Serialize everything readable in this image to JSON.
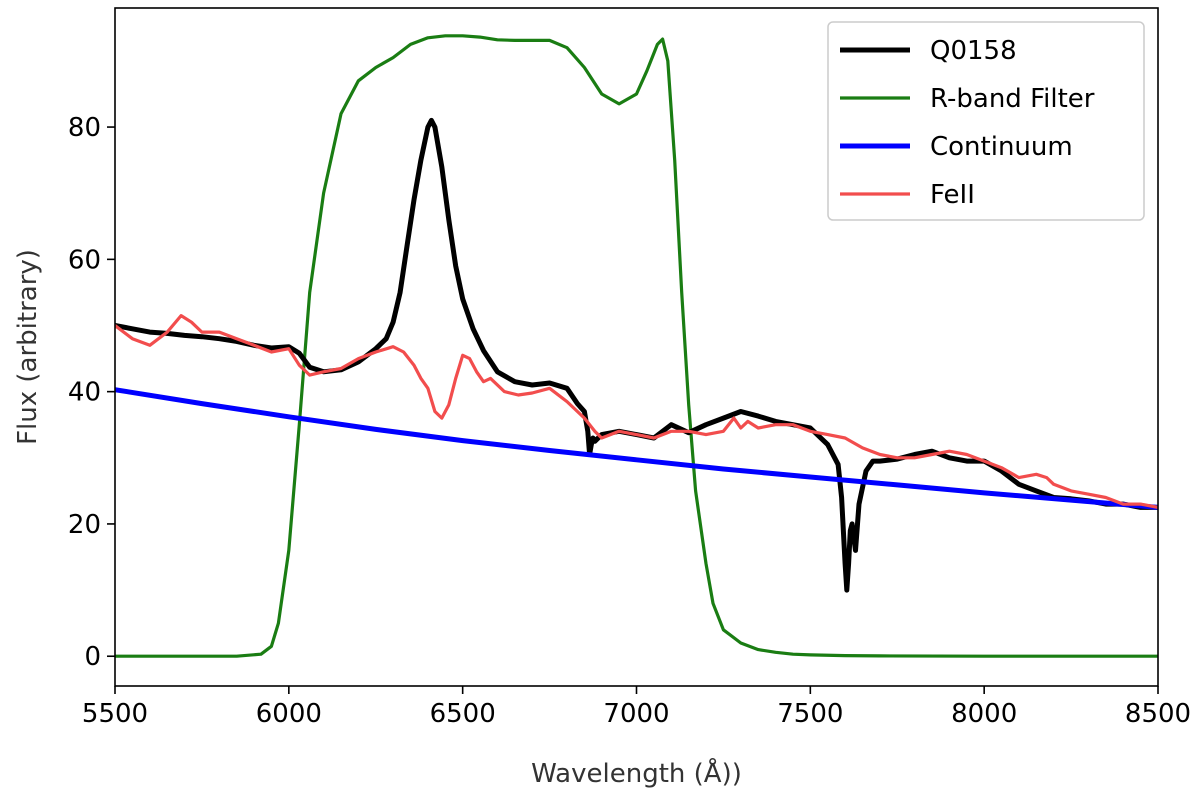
{
  "chart_data": {
    "type": "line",
    "title": "",
    "xlabel": "Wavelength (Å))",
    "ylabel": "Flux (arbitrary)",
    "xlim": [
      5500,
      8500
    ],
    "ylim": [
      -4.5,
      98
    ],
    "xticks": [
      5500,
      6000,
      6500,
      7000,
      7500,
      8000,
      8500
    ],
    "yticks": [
      0,
      20,
      40,
      60,
      80
    ],
    "grid": false,
    "legend_position": "top-right",
    "series": [
      {
        "name": "Q0158",
        "color": "#000000",
        "x": [
          5500,
          5550,
          5600,
          5650,
          5700,
          5750,
          5800,
          5850,
          5900,
          5950,
          6000,
          6030,
          6060,
          6100,
          6150,
          6200,
          6250,
          6280,
          6300,
          6320,
          6340,
          6360,
          6380,
          6400,
          6410,
          6420,
          6440,
          6460,
          6480,
          6500,
          6530,
          6560,
          6600,
          6650,
          6700,
          6750,
          6800,
          6830,
          6850,
          6860,
          6865,
          6870,
          6875,
          6880,
          6900,
          6950,
          7000,
          7050,
          7100,
          7150,
          7200,
          7250,
          7300,
          7350,
          7400,
          7450,
          7500,
          7550,
          7580,
          7590,
          7600,
          7605,
          7610,
          7615,
          7620,
          7630,
          7640,
          7660,
          7680,
          7700,
          7750,
          7800,
          7850,
          7900,
          7950,
          8000,
          8050,
          8100,
          8150,
          8200,
          8250,
          8300,
          8350,
          8400,
          8450,
          8500
        ],
        "y": [
          50,
          49.5,
          49,
          48.8,
          48.5,
          48.3,
          48,
          47.6,
          47,
          46.6,
          46.8,
          45.8,
          43.7,
          43,
          43.3,
          44.5,
          46.5,
          48,
          50.5,
          55,
          62,
          69,
          75,
          80,
          81,
          80,
          74,
          66,
          59,
          54,
          49.5,
          46.2,
          43,
          41.5,
          41,
          41.3,
          40.5,
          38.2,
          37,
          34,
          30.5,
          32,
          33,
          32.5,
          33.5,
          34,
          33.5,
          33,
          35,
          33.8,
          35,
          36,
          37,
          36.3,
          35.5,
          35,
          34.5,
          32,
          29,
          24,
          14,
          10,
          14,
          19,
          20,
          16,
          23,
          28,
          29.5,
          29.5,
          29.8,
          30.5,
          31,
          30,
          29.5,
          29.5,
          28,
          26,
          25,
          24,
          23.8,
          23.5,
          23,
          23,
          22.5,
          22.5
        ]
      },
      {
        "name": "R-band Filter",
        "color": "#1a7d13",
        "x": [
          5500,
          5700,
          5850,
          5920,
          5950,
          5970,
          6000,
          6030,
          6060,
          6100,
          6150,
          6200,
          6250,
          6300,
          6350,
          6400,
          6450,
          6500,
          6550,
          6600,
          6650,
          6700,
          6750,
          6800,
          6850,
          6900,
          6950,
          7000,
          7030,
          7060,
          7075,
          7090,
          7110,
          7130,
          7150,
          7170,
          7200,
          7220,
          7250,
          7300,
          7350,
          7400,
          7450,
          7500,
          7600,
          7700,
          8000,
          8500
        ],
        "y": [
          0,
          0,
          0,
          0.3,
          1.5,
          5,
          16,
          35,
          55,
          70,
          82,
          87,
          89,
          90.5,
          92.5,
          93.5,
          93.8,
          93.8,
          93.6,
          93.2,
          93.1,
          93.1,
          93.1,
          92,
          89,
          85,
          83.5,
          85,
          88.5,
          92.5,
          93.3,
          90,
          75,
          55,
          38,
          25,
          14,
          8,
          4,
          2,
          1,
          0.6,
          0.3,
          0.2,
          0.1,
          0.05,
          0,
          0
        ]
      },
      {
        "name": "Continuum",
        "color": "#0000ff",
        "x": [
          5500,
          5750,
          6000,
          6250,
          6500,
          6750,
          7000,
          7250,
          7500,
          7750,
          8000,
          8250,
          8500
        ],
        "y": [
          40.3,
          38.2,
          36.2,
          34.3,
          32.6,
          31.1,
          29.7,
          28.3,
          27.1,
          25.9,
          24.7,
          23.6,
          22.5
        ]
      },
      {
        "name": "FeII",
        "color": "#f24d4d",
        "x": [
          5500,
          5550,
          5600,
          5650,
          5690,
          5720,
          5750,
          5800,
          5850,
          5900,
          5950,
          6000,
          6030,
          6060,
          6100,
          6150,
          6200,
          6250,
          6300,
          6330,
          6360,
          6380,
          6400,
          6420,
          6440,
          6460,
          6480,
          6500,
          6520,
          6540,
          6560,
          6580,
          6620,
          6660,
          6700,
          6750,
          6800,
          6850,
          6880,
          6900,
          6950,
          7000,
          7050,
          7100,
          7150,
          7200,
          7250,
          7280,
          7300,
          7320,
          7350,
          7400,
          7450,
          7500,
          7550,
          7600,
          7650,
          7700,
          7750,
          7800,
          7850,
          7900,
          7950,
          8000,
          8050,
          8100,
          8150,
          8180,
          8200,
          8250,
          8300,
          8350,
          8400,
          8450,
          8500
        ],
        "y": [
          50,
          48,
          47,
          49,
          51.5,
          50.5,
          49,
          49,
          48,
          47,
          46,
          46.5,
          44,
          42.5,
          43,
          43.5,
          45,
          46,
          46.8,
          46,
          44,
          42,
          40.5,
          37,
          36,
          38,
          42,
          45.5,
          45,
          43,
          41.5,
          42,
          40,
          39.5,
          39.8,
          40.5,
          38.5,
          36,
          34,
          33,
          34,
          33.5,
          33,
          34,
          34,
          33.5,
          34,
          36,
          34.5,
          35.5,
          34.5,
          35,
          35,
          34,
          33.5,
          33,
          31.5,
          30.5,
          30,
          30,
          30.5,
          31,
          30.5,
          29.5,
          28.5,
          27,
          27.5,
          27,
          26,
          25,
          24.5,
          24,
          23,
          23,
          22.5
        ]
      }
    ]
  }
}
